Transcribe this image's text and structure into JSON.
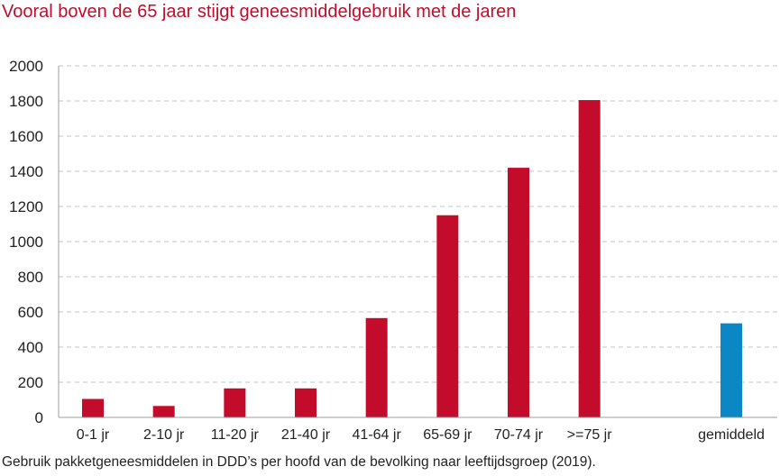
{
  "chart_data": {
    "type": "bar",
    "title": "Vooral boven de 65 jaar stijgt geneesmiddelgebruik met de jaren",
    "caption": "Gebruik pakketgeneesmiddelen in DDD’s per hoofd van de bevolking naar leeftijdsgroep (2019).",
    "categories": [
      "0-1 jr",
      "2-10 jr",
      "11-20 jr",
      "21-40 jr",
      "41-64 jr",
      "65-69 jr",
      "70-74 jr",
      ">=75 jr",
      "gemiddeld"
    ],
    "values": [
      105,
      65,
      165,
      165,
      565,
      1150,
      1420,
      1805,
      535
    ],
    "yticks": [
      0,
      200,
      400,
      600,
      800,
      1000,
      1200,
      1400,
      1600,
      1800,
      2000
    ],
    "ylim": [
      0,
      2000
    ],
    "grid": true,
    "colors": {
      "bar": "#c30c2b",
      "average_bar": "#0a87c4",
      "grid": "#d9d9d9",
      "title": "#c30c2b"
    }
  }
}
